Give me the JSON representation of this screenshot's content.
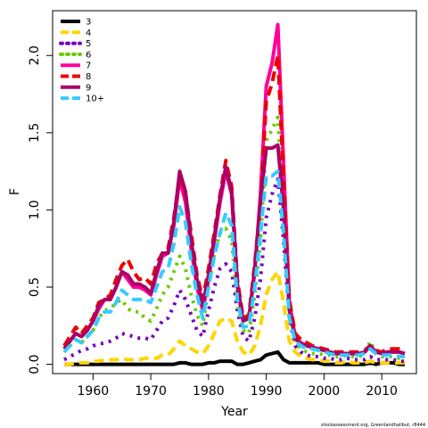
{
  "chart_data": {
    "type": "line",
    "xlabel": "Year",
    "ylabel": "F",
    "footnote": "stockassessment.org, Greenlandhalibut, r8444",
    "xlim": [
      1953,
      2016
    ],
    "ylim": [
      -0.06,
      2.29
    ],
    "x_ticks": [
      1960,
      1970,
      1980,
      1990,
      2000,
      2010
    ],
    "x_tick_labels": [
      "1960",
      "1970",
      "1980",
      "1990",
      "2000",
      "2010"
    ],
    "y_ticks": [
      0,
      0.5,
      1,
      1.5,
      2
    ],
    "y_tick_labels": [
      "0.0",
      "0.5",
      "1.0",
      "1.5",
      "2.0"
    ],
    "legend_position": "top-left",
    "x": [
      1955,
      1956,
      1957,
      1958,
      1959,
      1960,
      1961,
      1962,
      1963,
      1964,
      1965,
      1966,
      1967,
      1968,
      1969,
      1970,
      1971,
      1972,
      1973,
      1974,
      1975,
      1976,
      1977,
      1978,
      1979,
      1980,
      1981,
      1982,
      1983,
      1984,
      1985,
      1986,
      1987,
      1988,
      1989,
      1990,
      1991,
      1992,
      1993,
      1994,
      1995,
      1996,
      1997,
      1998,
      1999,
      2000,
      2001,
      2002,
      2003,
      2004,
      2005,
      2006,
      2007,
      2008,
      2009,
      2010,
      2011,
      2012,
      2013,
      2014
    ],
    "series": [
      {
        "name": "3",
        "color": "#000000",
        "dash": "solid",
        "values": [
          0.0,
          0.0,
          0.0,
          0.0,
          0.0,
          0.0,
          0.0,
          0.0,
          0.0,
          0.0,
          0.0,
          0.0,
          0.0,
          0.0,
          0.0,
          0.0,
          0.0,
          0.0,
          0.0,
          0.0,
          0.01,
          0.01,
          0.0,
          0.0,
          0.0,
          0.01,
          0.01,
          0.02,
          0.02,
          0.02,
          0.0,
          0.0,
          0.01,
          0.02,
          0.03,
          0.06,
          0.07,
          0.08,
          0.03,
          0.01,
          0.01,
          0.01,
          0.01,
          0.01,
          0.01,
          0.0,
          0.0,
          0.0,
          0.0,
          0.0,
          0.0,
          0.0,
          0.0,
          0.01,
          0.0,
          0.01,
          0.01,
          0.01,
          0.0,
          0.0
        ]
      },
      {
        "name": "4",
        "color": "#FFD500",
        "dash": "dash",
        "values": [
          0.0,
          0.0,
          0.01,
          0.01,
          0.01,
          0.02,
          0.02,
          0.03,
          0.03,
          0.03,
          0.04,
          0.03,
          0.03,
          0.03,
          0.04,
          0.04,
          0.04,
          0.06,
          0.06,
          0.1,
          0.15,
          0.12,
          0.1,
          0.08,
          0.07,
          0.12,
          0.2,
          0.28,
          0.3,
          0.28,
          0.15,
          0.08,
          0.06,
          0.12,
          0.25,
          0.45,
          0.55,
          0.6,
          0.4,
          0.15,
          0.08,
          0.05,
          0.04,
          0.03,
          0.03,
          0.02,
          0.02,
          0.01,
          0.01,
          0.02,
          0.01,
          0.01,
          0.01,
          0.02,
          0.01,
          0.01,
          0.01,
          0.01,
          0.01,
          0.01
        ]
      },
      {
        "name": "5",
        "color": "#7700BB",
        "dash": "dot",
        "values": [
          0.03,
          0.05,
          0.07,
          0.09,
          0.1,
          0.12,
          0.13,
          0.14,
          0.15,
          0.17,
          0.2,
          0.19,
          0.18,
          0.17,
          0.17,
          0.16,
          0.22,
          0.28,
          0.3,
          0.38,
          0.48,
          0.42,
          0.32,
          0.22,
          0.18,
          0.35,
          0.5,
          0.62,
          0.65,
          0.6,
          0.35,
          0.18,
          0.15,
          0.3,
          0.55,
          0.95,
          1.1,
          1.2,
          0.8,
          0.3,
          0.12,
          0.08,
          0.06,
          0.05,
          0.05,
          0.04,
          0.04,
          0.03,
          0.03,
          0.04,
          0.03,
          0.03,
          0.03,
          0.05,
          0.03,
          0.03,
          0.03,
          0.03,
          0.02,
          0.02
        ]
      },
      {
        "name": "6",
        "color": "#66CC00",
        "dash": "dot",
        "values": [
          0.08,
          0.12,
          0.16,
          0.14,
          0.18,
          0.22,
          0.3,
          0.35,
          0.36,
          0.4,
          0.42,
          0.36,
          0.34,
          0.34,
          0.3,
          0.28,
          0.36,
          0.45,
          0.5,
          0.6,
          0.7,
          0.62,
          0.45,
          0.32,
          0.25,
          0.5,
          0.72,
          0.85,
          0.88,
          0.8,
          0.4,
          0.22,
          0.2,
          0.45,
          0.8,
          1.45,
          1.52,
          1.6,
          1.0,
          0.35,
          0.14,
          0.1,
          0.08,
          0.07,
          0.07,
          0.06,
          0.06,
          0.05,
          0.05,
          0.06,
          0.05,
          0.05,
          0.06,
          0.15,
          0.07,
          0.05,
          0.05,
          0.05,
          0.04,
          0.04
        ]
      },
      {
        "name": "7",
        "color": "#FF0099",
        "dash": "solid",
        "values": [
          0.1,
          0.15,
          0.2,
          0.18,
          0.22,
          0.28,
          0.36,
          0.42,
          0.42,
          0.5,
          0.6,
          0.55,
          0.5,
          0.5,
          0.48,
          0.45,
          0.58,
          0.7,
          0.72,
          0.9,
          1.2,
          1.05,
          0.75,
          0.5,
          0.35,
          0.55,
          0.8,
          1.05,
          1.25,
          1.1,
          0.5,
          0.28,
          0.3,
          0.6,
          1.1,
          1.8,
          1.95,
          2.2,
          1.3,
          0.4,
          0.18,
          0.14,
          0.12,
          0.11,
          0.1,
          0.09,
          0.08,
          0.07,
          0.07,
          0.07,
          0.07,
          0.07,
          0.08,
          0.12,
          0.08,
          0.07,
          0.08,
          0.08,
          0.08,
          0.07
        ]
      },
      {
        "name": "8",
        "color": "#EE0000",
        "dash": "dash",
        "values": [
          0.12,
          0.18,
          0.24,
          0.2,
          0.25,
          0.3,
          0.4,
          0.42,
          0.45,
          0.55,
          0.64,
          0.68,
          0.6,
          0.55,
          0.56,
          0.52,
          0.65,
          0.72,
          0.75,
          0.95,
          1.22,
          1.1,
          0.85,
          0.58,
          0.42,
          0.62,
          0.85,
          1.1,
          1.32,
          1.15,
          0.55,
          0.3,
          0.32,
          0.65,
          1.05,
          1.7,
          1.82,
          2.0,
          1.2,
          0.42,
          0.2,
          0.16,
          0.14,
          0.12,
          0.11,
          0.1,
          0.09,
          0.08,
          0.08,
          0.08,
          0.08,
          0.08,
          0.09,
          0.12,
          0.09,
          0.08,
          0.1,
          0.1,
          0.1,
          0.09
        ]
      },
      {
        "name": "9",
        "color": "#AA0066",
        "dash": "solid",
        "values": [
          0.1,
          0.15,
          0.2,
          0.18,
          0.22,
          0.28,
          0.38,
          0.42,
          0.42,
          0.5,
          0.6,
          0.58,
          0.52,
          0.52,
          0.5,
          0.46,
          0.6,
          0.72,
          0.72,
          0.92,
          1.25,
          1.12,
          0.8,
          0.55,
          0.38,
          0.58,
          0.82,
          1.08,
          1.28,
          1.12,
          0.52,
          0.28,
          0.3,
          0.62,
          1.05,
          1.4,
          1.4,
          1.42,
          1.0,
          0.35,
          0.17,
          0.13,
          0.12,
          0.11,
          0.1,
          0.09,
          0.08,
          0.07,
          0.07,
          0.07,
          0.07,
          0.07,
          0.08,
          0.12,
          0.08,
          0.07,
          0.08,
          0.08,
          0.08,
          0.07
        ]
      },
      {
        "name": "10+",
        "color": "#33CCFF",
        "dash": "dash",
        "values": [
          0.08,
          0.12,
          0.16,
          0.14,
          0.18,
          0.22,
          0.3,
          0.34,
          0.34,
          0.4,
          0.48,
          0.45,
          0.42,
          0.42,
          0.42,
          0.4,
          0.5,
          0.6,
          0.62,
          0.78,
          1.02,
          0.92,
          0.66,
          0.45,
          0.3,
          0.5,
          0.7,
          0.85,
          0.98,
          0.9,
          0.42,
          0.24,
          0.25,
          0.5,
          0.85,
          1.22,
          1.22,
          1.25,
          0.85,
          0.3,
          0.15,
          0.12,
          0.1,
          0.1,
          0.09,
          0.08,
          0.07,
          0.06,
          0.06,
          0.06,
          0.06,
          0.06,
          0.07,
          0.1,
          0.07,
          0.06,
          0.06,
          0.06,
          0.05,
          0.05
        ]
      }
    ]
  }
}
